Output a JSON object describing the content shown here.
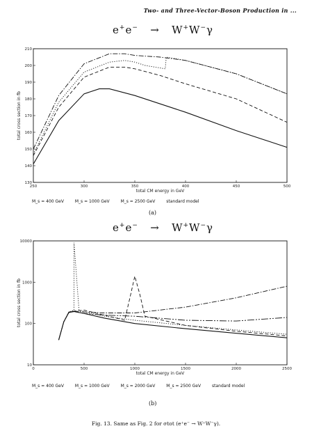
{
  "running_head": "Two- and Three-Vector-Boson Production in ...",
  "process": {
    "initial": "e",
    "arrow": "→",
    "final": "W",
    "photon": "γ"
  },
  "chart_data": [
    {
      "type": "line",
      "title": "",
      "xlabel": "total CM energy in GeV",
      "ylabel": "total cross section in fb",
      "x_ticks": [
        "250",
        "300",
        "350",
        "400",
        "450",
        "500"
      ],
      "y_ticks": [
        "130",
        "140",
        "150",
        "160",
        "170",
        "180",
        "190",
        "200",
        "210"
      ],
      "xlim": [
        250,
        500
      ],
      "ylim": [
        130,
        210
      ],
      "series": [
        {
          "name": "M_s = 400 GeV",
          "style": "dot",
          "x": [
            250,
            275,
            300,
            325,
            340,
            350,
            360,
            370,
            380,
            381,
            400,
            450,
            500
          ],
          "y": [
            147,
            178,
            196,
            202,
            203,
            202,
            200,
            199,
            198,
            205,
            203,
            195,
            183
          ]
        },
        {
          "name": "M_s = 1000 GeV",
          "style": "dashdot",
          "x": [
            250,
            275,
            300,
            325,
            340,
            350,
            375,
            400,
            450,
            500
          ],
          "y": [
            150,
            182,
            201,
            207,
            207,
            206,
            205,
            203,
            195,
            183
          ]
        },
        {
          "name": "M_s = 2500 GeV",
          "style": "dash",
          "x": [
            250,
            275,
            300,
            325,
            340,
            350,
            375,
            400,
            450,
            500
          ],
          "y": [
            146,
            175,
            193,
            199,
            199,
            198,
            194,
            189,
            180,
            166
          ]
        },
        {
          "name": "standard model",
          "style": "solid",
          "x": [
            250,
            275,
            300,
            315,
            325,
            350,
            375,
            400,
            450,
            500
          ],
          "y": [
            141,
            167,
            183,
            186,
            186,
            182,
            177,
            172,
            161,
            151
          ]
        }
      ]
    },
    {
      "type": "line",
      "title": "",
      "xlabel": "total CM energy in GeV",
      "ylabel": "total cross section in fb",
      "x_ticks": [
        "0",
        "500",
        "1000",
        "1500",
        "2000",
        "2500"
      ],
      "y_ticks": [
        "10",
        "100",
        "1000",
        "10000"
      ],
      "y_scale": "log",
      "xlim": [
        0,
        2500
      ],
      "ylim": [
        10,
        10000
      ],
      "series": [
        {
          "name": "M_s = 400 GeV",
          "style": "dot",
          "x": [
            250,
            300,
            350,
            400,
            401,
            450,
            550,
            700,
            1000,
            1500,
            2000,
            2500
          ],
          "y": [
            40,
            110,
            190,
            210,
            9000,
            210,
            180,
            150,
            120,
            90,
            70,
            55
          ]
        },
        {
          "name": "M_s = 1000 GeV",
          "style": "dashdot",
          "x": [
            250,
            300,
            350,
            400,
            500,
            700,
            1000,
            1500,
            2000,
            2500
          ],
          "y": [
            40,
            110,
            190,
            200,
            190,
            180,
            180,
            250,
            420,
            800
          ]
        },
        {
          "name": "M_s = 2000 GeV",
          "style": "dashdot2",
          "x": [
            250,
            300,
            350,
            400,
            500,
            700,
            1000,
            1500,
            2000,
            2500
          ],
          "y": [
            40,
            110,
            185,
            195,
            175,
            160,
            150,
            120,
            115,
            140
          ]
        },
        {
          "name": "M_s = 2500 GeV",
          "style": "dash",
          "x": [
            250,
            300,
            350,
            400,
            500,
            700,
            900,
            950,
            1000,
            1050,
            1100,
            1500,
            2000,
            2500
          ],
          "y": [
            40,
            110,
            185,
            200,
            210,
            160,
            120,
            400,
            1400,
            500,
            150,
            90,
            65,
            50
          ]
        },
        {
          "name": "standard model",
          "style": "solid",
          "x": [
            250,
            300,
            350,
            400,
            500,
            700,
            1000,
            1500,
            2000,
            2500
          ],
          "y": [
            40,
            110,
            185,
            195,
            175,
            135,
            100,
            75,
            58,
            45
          ]
        }
      ]
    }
  ],
  "legend_a": [
    "M_s = 400 GeV",
    "M_s = 1000 GeV",
    "M_s = 2500 GeV",
    "standard model"
  ],
  "legend_b": [
    "M_s = 400 GeV",
    "M_s = 1000 GeV",
    "M_s = 2000 GeV",
    "M_s = 2500 GeV",
    "standard model"
  ],
  "panel_labels": {
    "a": "(a)",
    "b": "(b)"
  },
  "caption": "Fig. 13. Same as Fig. 2 for σtot (e⁺e⁻ → W⁺W⁻γ)."
}
